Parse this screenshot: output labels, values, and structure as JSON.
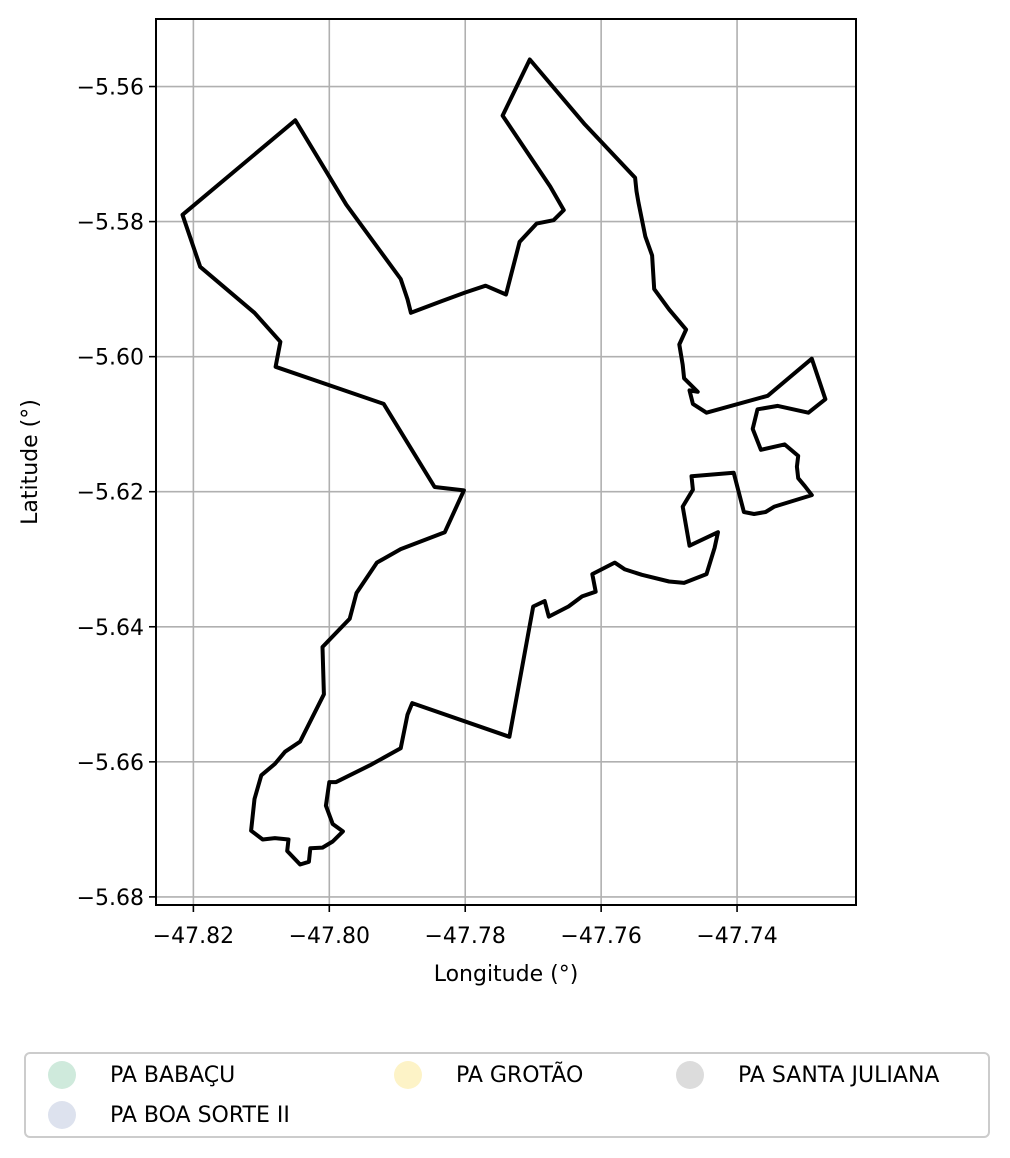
{
  "chart_data": {
    "type": "map",
    "xlabel": "Longitude (°)",
    "ylabel": "Latitude (°)",
    "xlim": [
      -47.8255,
      -47.7225
    ],
    "ylim": [
      -5.6812,
      -5.55
    ],
    "grid": true,
    "xticks": [
      -47.82,
      -47.8,
      -47.78,
      -47.76,
      -47.74
    ],
    "xtick_labels": [
      "−47.82",
      "−47.80",
      "−47.78",
      "−47.76",
      "−47.74"
    ],
    "yticks": [
      -5.56,
      -5.58,
      -5.6,
      -5.62,
      -5.64,
      -5.66,
      -5.68
    ],
    "ytick_labels": [
      "−5.56",
      "−5.58",
      "−5.60",
      "−5.62",
      "−5.64",
      "−5.66",
      "−5.68"
    ],
    "boundary_color": "#000000",
    "boundary": [
      [
        -47.8216,
        -5.579
      ],
      [
        -47.805,
        -5.565
      ],
      [
        -47.7975,
        -5.5775
      ],
      [
        -47.7895,
        -5.5885
      ],
      [
        -47.7885,
        -5.5915
      ],
      [
        -47.788,
        -5.5935
      ],
      [
        -47.7835,
        -5.5918
      ],
      [
        -47.78,
        -5.5905
      ],
      [
        -47.777,
        -5.5895
      ],
      [
        -47.774,
        -5.5908
      ],
      [
        -47.772,
        -5.583
      ],
      [
        -47.7695,
        -5.5803
      ],
      [
        -47.767,
        -5.5798
      ],
      [
        -47.7655,
        -5.5783
      ],
      [
        -47.7675,
        -5.5748
      ],
      [
        -47.7745,
        -5.5643
      ],
      [
        -47.7705,
        -5.556
      ],
      [
        -47.7625,
        -5.5655
      ],
      [
        -47.755,
        -5.5735
      ],
      [
        -47.7548,
        -5.5755
      ],
      [
        -47.7545,
        -5.5772
      ],
      [
        -47.7535,
        -5.5822
      ],
      [
        -47.7525,
        -5.585
      ],
      [
        -47.7522,
        -5.59
      ],
      [
        -47.75,
        -5.593
      ],
      [
        -47.7475,
        -5.596
      ],
      [
        -47.7485,
        -5.5982
      ],
      [
        -47.748,
        -5.6012
      ],
      [
        -47.7478,
        -5.6032
      ],
      [
        -47.7458,
        -5.6052
      ],
      [
        -47.747,
        -5.605
      ],
      [
        -47.7465,
        -5.607
      ],
      [
        -47.7445,
        -5.6083
      ],
      [
        -47.7355,
        -5.6058
      ],
      [
        -47.729,
        -5.6003
      ],
      [
        -47.727,
        -5.6063
      ],
      [
        -47.7295,
        -5.6083
      ],
      [
        -47.734,
        -5.6073
      ],
      [
        -47.737,
        -5.6078
      ],
      [
        -47.7377,
        -5.6107
      ],
      [
        -47.7365,
        -5.6138
      ],
      [
        -47.733,
        -5.613
      ],
      [
        -47.731,
        -5.6147
      ],
      [
        -47.7312,
        -5.6163
      ],
      [
        -47.731,
        -5.618
      ],
      [
        -47.73,
        -5.6192
      ],
      [
        -47.729,
        -5.6205
      ],
      [
        -47.7345,
        -5.6222
      ],
      [
        -47.7358,
        -5.623
      ],
      [
        -47.7375,
        -5.6233
      ],
      [
        -47.739,
        -5.623
      ],
      [
        -47.7405,
        -5.6172
      ],
      [
        -47.7467,
        -5.6177
      ],
      [
        -47.7465,
        -5.6197
      ],
      [
        -47.748,
        -5.6222
      ],
      [
        -47.747,
        -5.628
      ],
      [
        -47.7428,
        -5.626
      ],
      [
        -47.7433,
        -5.6283
      ],
      [
        -47.7445,
        -5.6322
      ],
      [
        -47.7478,
        -5.6335
      ],
      [
        -47.75,
        -5.6333
      ],
      [
        -47.754,
        -5.6323
      ],
      [
        -47.7565,
        -5.6315
      ],
      [
        -47.758,
        -5.6305
      ],
      [
        -47.7613,
        -5.6322
      ],
      [
        -47.7608,
        -5.6348
      ],
      [
        -47.7628,
        -5.6355
      ],
      [
        -47.7648,
        -5.637
      ],
      [
        -47.7677,
        -5.6385
      ],
      [
        -47.7683,
        -5.6362
      ],
      [
        -47.77,
        -5.637
      ],
      [
        -47.7735,
        -5.6563
      ],
      [
        -47.7878,
        -5.6513
      ],
      [
        -47.7885,
        -5.653
      ],
      [
        -47.7895,
        -5.658
      ],
      [
        -47.794,
        -5.6605
      ],
      [
        -47.799,
        -5.663
      ],
      [
        -47.8,
        -5.663
      ],
      [
        -47.8005,
        -5.6665
      ],
      [
        -47.7995,
        -5.6692
      ],
      [
        -47.798,
        -5.6703
      ],
      [
        -47.7995,
        -5.6718
      ],
      [
        -47.801,
        -5.6727
      ],
      [
        -47.8028,
        -5.6728
      ],
      [
        -47.803,
        -5.6748
      ],
      [
        -47.8043,
        -5.6752
      ],
      [
        -47.8062,
        -5.6732
      ],
      [
        -47.806,
        -5.6715
      ],
      [
        -47.808,
        -5.6713
      ],
      [
        -47.8098,
        -5.6715
      ],
      [
        -47.8115,
        -5.6702
      ],
      [
        -47.811,
        -5.6655
      ],
      [
        -47.81,
        -5.662
      ],
      [
        -47.808,
        -5.6603
      ],
      [
        -47.8065,
        -5.6585
      ],
      [
        -47.8043,
        -5.657
      ],
      [
        -47.8008,
        -5.65
      ],
      [
        -47.801,
        -5.643
      ],
      [
        -47.797,
        -5.6388
      ],
      [
        -47.796,
        -5.635
      ],
      [
        -47.793,
        -5.6305
      ],
      [
        -47.7895,
        -5.6285
      ],
      [
        -47.783,
        -5.626
      ],
      [
        -47.7802,
        -5.6198
      ],
      [
        -47.7845,
        -5.6193
      ],
      [
        -47.792,
        -5.607
      ],
      [
        -47.8079,
        -5.6015
      ],
      [
        -47.8072,
        -5.5978
      ],
      [
        -47.811,
        -5.5935
      ],
      [
        -47.819,
        -5.5867
      ],
      [
        -47.8216,
        -5.579
      ]
    ],
    "legend": {
      "placement": "below",
      "entries": [
        {
          "label": "PA BABAÇU",
          "color": "#cfeadc"
        },
        {
          "label": "PA BOA SORTE II",
          "color": "#dde2ee"
        },
        {
          "label": "PA GROTÃO",
          "color": "#fdf3c7"
        },
        {
          "label": "PA SANTA JULIANA",
          "color": "#dcdcdc"
        }
      ]
    }
  }
}
